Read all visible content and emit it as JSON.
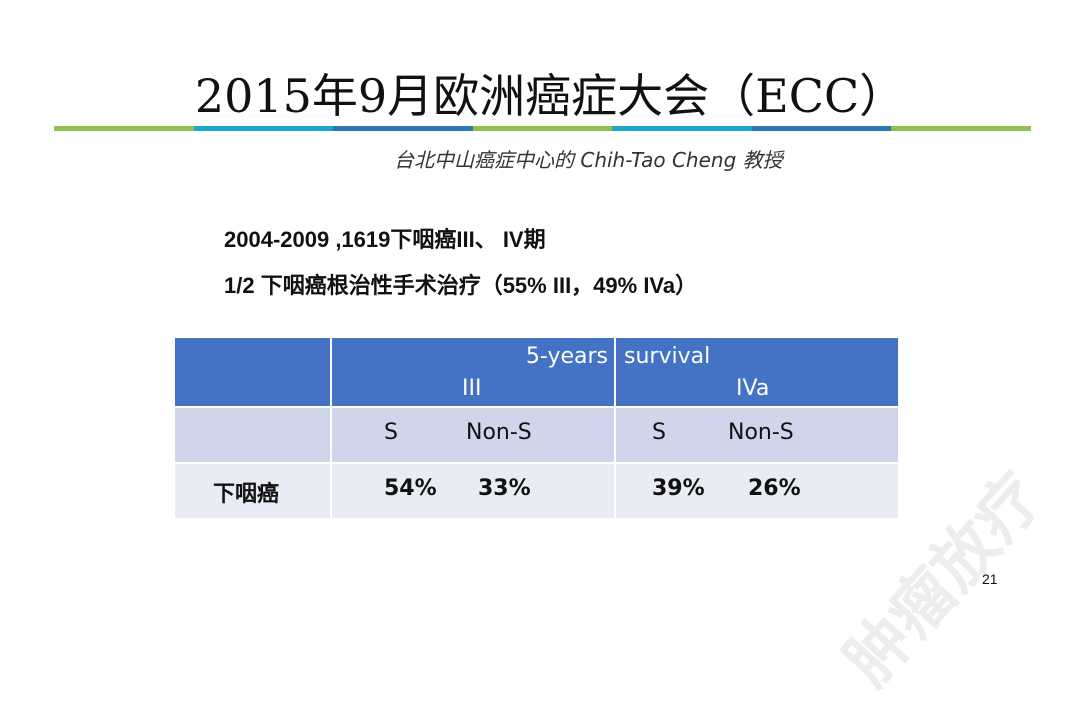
{
  "slide": {
    "title": "2015年9月欧洲癌症大会（ECC）",
    "subtitle": "台北中山癌症中心的 Chih-Tao Cheng 教授",
    "line1": "2004-2009 ,1619下咽癌III、 IV期",
    "line2": "1/2 下咽癌根治性手术治疗（55% III，49% IVa）",
    "page_number": "21",
    "watermark": "肿瘤放疗"
  },
  "colors": {
    "header_blue": "#4472c4",
    "subheader": "#cfd5ea",
    "data_row": "#e9ebf5",
    "rule_green": "#92c050",
    "rule_cyan": "#1fa6cf",
    "rule_blue": "#2e75b6"
  },
  "table": {
    "header": {
      "survival_left": "5-years",
      "survival_right": "survival",
      "group_iii": "III",
      "group_iva": "IVa"
    },
    "subheader": {
      "s_iii": "S",
      "nons_iii": "Non-S",
      "s_iva": "S",
      "nons_iva": "Non-S"
    },
    "row": {
      "label": "下咽癌",
      "s_iii": "54%",
      "nons_iii": "33%",
      "s_iva": "39%",
      "nons_iva": "26%"
    }
  }
}
